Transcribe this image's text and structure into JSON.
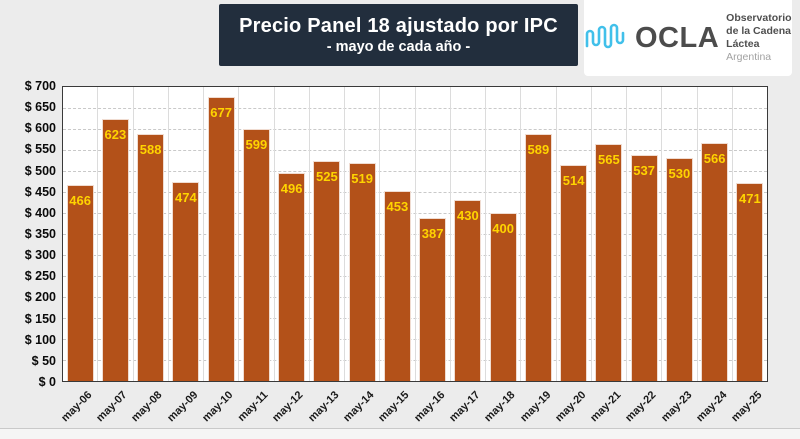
{
  "header": {
    "title": "Precio Panel 18 ajustado por IPC",
    "subtitle": "- mayo de cada año -"
  },
  "logo": {
    "brand": "OCLA",
    "line1": "Observatorio",
    "line2": "de la Cadena Láctea",
    "line3": "Argentina",
    "wave_color": "#41c0ea"
  },
  "colors": {
    "page_bg": "#ececec",
    "title_bg": "#222e3d",
    "bar": "#b35119",
    "bar_label": "#ffd400",
    "plot_border": "#3a3a3a"
  },
  "chart_data": {
    "type": "bar",
    "title": "Precio Panel 18 ajustado por IPC",
    "subtitle": "- mayo de cada año -",
    "categories": [
      "may-06",
      "may-07",
      "may-08",
      "may-09",
      "may-10",
      "may-11",
      "may-12",
      "may-13",
      "may-14",
      "may-15",
      "may-16",
      "may-17",
      "may-18",
      "may-19",
      "may-20",
      "may-21",
      "may-22",
      "may-23",
      "may-24",
      "may-25"
    ],
    "values": [
      466,
      623,
      588,
      474,
      677,
      599,
      496,
      525,
      519,
      453,
      387,
      430,
      400,
      589,
      514,
      565,
      537,
      530,
      566,
      471
    ],
    "xlabel": "",
    "ylabel": "",
    "ylim": [
      0,
      700
    ],
    "ytick_step": 50,
    "ytick_prefix": "$ ",
    "grid": "horizontal-dashed, vertical-solid",
    "legend": "none",
    "bar_labels": "inside-top, yellow"
  }
}
